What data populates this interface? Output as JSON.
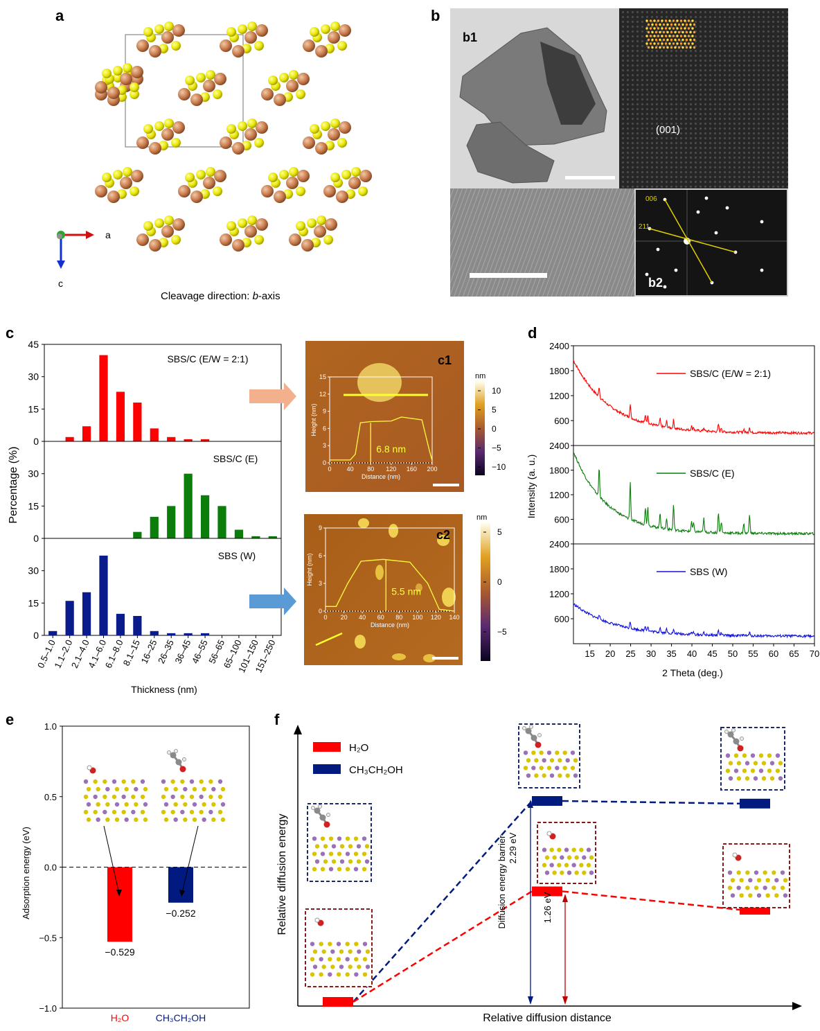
{
  "panel_labels": {
    "a": "a",
    "b": "b",
    "c": "c",
    "d": "d",
    "e": "e",
    "f": "f"
  },
  "panel_a": {
    "axis_a": "a",
    "axis_c": "c",
    "caption_pre": "Cleavage direction: ",
    "caption_italic": "b",
    "caption_post": "-axis"
  },
  "panel_b": {
    "b1": "b1",
    "b2": "b2",
    "plane": "(001)",
    "fft_006": "006",
    "fft_211": "211"
  },
  "panel_c": {
    "ylabel": "Percentage (%)",
    "xlabel": "Thickness (nm)",
    "c1": {
      "label": "c1",
      "colorbar_unit": "nm",
      "colorbar_ticks": [
        "10",
        "5",
        "0",
        "−5",
        "−10"
      ],
      "inset_ylabel": "Height (nm)",
      "inset_xlabel": "Distance (nm)",
      "inset_yticks": [
        "15",
        "12",
        "9",
        "6",
        "3",
        "0"
      ],
      "inset_xticks": [
        "0",
        "40",
        "80",
        "120",
        "160",
        "200"
      ],
      "measure": "6.8 nm"
    },
    "c2": {
      "label": "c2",
      "colorbar_unit": "nm",
      "colorbar_ticks": [
        "5",
        "0",
        "−5"
      ],
      "inset_ylabel": "Height (nm)",
      "inset_xlabel": "Distance (nm)",
      "inset_yticks": [
        "9",
        "6",
        "3",
        "0"
      ],
      "inset_xticks": [
        "0",
        "20",
        "40",
        "60",
        "80",
        "100",
        "120",
        "140"
      ],
      "measure": "5.5 nm"
    }
  },
  "panel_d": {
    "ylabel": "Intensity (a. u.)",
    "xlabel": "2 Theta (deg.)"
  },
  "panel_e": {
    "ylabel": "Adsorption energy (eV)"
  },
  "panel_f": {
    "ylabel": "Relative diffusion energy",
    "xlabel": "Relative diffusion distance",
    "legend_h2o": "H₂O",
    "legend_etoh": "CH₃CH₂OH",
    "barrier_label": "Diffusion energy barrier",
    "barrier_value": "2.29 eV",
    "barrier_h2o": "1.26 eV"
  },
  "chart_data": [
    {
      "id": "c",
      "type": "bar",
      "ylabel": "Percentage (%)",
      "xlabel": "Thickness (nm)",
      "categories": [
        "0.5–1.0",
        "1.1–2.0",
        "2.1–4.0",
        "4.1–6.0",
        "6.1–8.0",
        "8.1–15",
        "16–25",
        "26–35",
        "36–45",
        "46–55",
        "56–65",
        "65–100",
        "101–150",
        "151–250"
      ],
      "series": [
        {
          "name": "SBS/C (E/W = 2:1)",
          "color": "#ff0000",
          "ylim": [
            0,
            45
          ],
          "yticks": [
            0,
            15,
            30,
            45
          ],
          "values": [
            0,
            2,
            7,
            40,
            23,
            18,
            6,
            2,
            1,
            1,
            0,
            0,
            0,
            0
          ]
        },
        {
          "name": "SBS/C (E)",
          "color": "#0a7d0a",
          "ylim": [
            0,
            45
          ],
          "yticks": [
            0,
            15,
            30
          ],
          "values": [
            0,
            0,
            0,
            0,
            0,
            3,
            10,
            15,
            30,
            20,
            15,
            4,
            1,
            1
          ]
        },
        {
          "name": "SBS (W)",
          "color": "#0a1c8c",
          "ylim": [
            0,
            45
          ],
          "yticks": [
            0,
            15,
            30
          ],
          "values": [
            2,
            16,
            20,
            37,
            10,
            9,
            2,
            1,
            1,
            1,
            0,
            0,
            0,
            0
          ]
        }
      ]
    },
    {
      "id": "d",
      "type": "line",
      "xlabel": "2 Theta (deg.)",
      "ylabel": "Intensity (a. u.)",
      "xlim": [
        11,
        70
      ],
      "xticks": [
        15,
        20,
        25,
        30,
        35,
        40,
        45,
        50,
        55,
        60,
        65,
        70
      ],
      "ylim": [
        0,
        2400
      ],
      "yticks": [
        600,
        1200,
        1800,
        2400
      ],
      "peaks": [
        17.3,
        24.9,
        28.6,
        29.2,
        32.2,
        33.8,
        35.5,
        39.9,
        40.4,
        42.9,
        46.5,
        47.2,
        52.7,
        54.1
      ],
      "series": [
        {
          "name": "SBS/C (E/W = 2:1)",
          "color": "#ff0000",
          "start": 2050,
          "base": 300,
          "decay": 9,
          "peak_heights": [
            250,
            320,
            200,
            220,
            180,
            150,
            200,
            100,
            80,
            80,
            180,
            100,
            80,
            130
          ]
        },
        {
          "name": "SBS/C (E)",
          "color": "#0a7d0a",
          "start": 2250,
          "base": 250,
          "decay": 8,
          "peak_heights": [
            700,
            900,
            400,
            450,
            380,
            260,
            620,
            250,
            220,
            350,
            500,
            280,
            260,
            480
          ]
        },
        {
          "name": "SBS (W)",
          "color": "#1111dd",
          "start": 960,
          "base": 180,
          "decay": 10,
          "peak_heights": [
            120,
            170,
            120,
            120,
            130,
            90,
            80,
            60,
            50,
            50,
            120,
            60,
            60,
            80
          ]
        }
      ]
    },
    {
      "id": "e",
      "type": "bar",
      "ylabel": "Adsorption energy (eV)",
      "ylim": [
        -1.0,
        1.0
      ],
      "yticks": [
        -1.0,
        -0.5,
        0.0,
        0.5,
        1.0
      ],
      "categories": [
        "H₂O",
        "CH₃CH₂OH"
      ],
      "values": [
        -0.529,
        -0.252
      ],
      "value_labels": [
        "−0.529",
        "−0.252"
      ],
      "colors": [
        "#ff0000",
        "#001a80"
      ]
    },
    {
      "id": "f",
      "type": "line",
      "ylabel": "Relative diffusion energy",
      "xlabel": "Relative diffusion distance",
      "series": [
        {
          "name": "H₂O",
          "color": "#ff0000",
          "states": [
            "initial",
            "transition",
            "final"
          ],
          "relative_energy": [
            0,
            1.26,
            1.05
          ]
        },
        {
          "name": "CH₃CH₂OH",
          "color": "#001a80",
          "states": [
            "initial",
            "transition",
            "final"
          ],
          "relative_energy": [
            0,
            2.29,
            2.26
          ]
        }
      ]
    }
  ]
}
